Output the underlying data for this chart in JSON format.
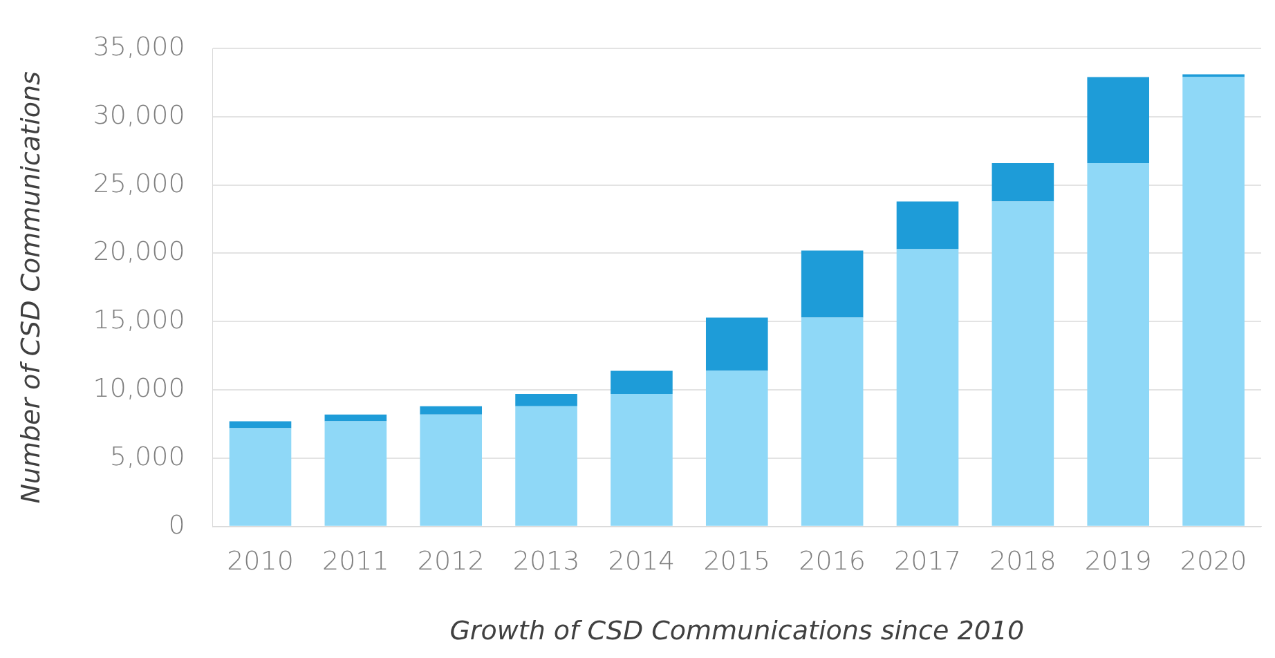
{
  "chart_data": {
    "type": "bar",
    "xlabel": "Growth of CSD Communications since 2010",
    "ylabel": "Number of CSD Communications",
    "categories": [
      "2010",
      "2011",
      "2012",
      "2013",
      "2014",
      "2015",
      "2016",
      "2017",
      "2018",
      "2019",
      "2020"
    ],
    "stacked": true,
    "series": [
      {
        "color": "#8fd8f7",
        "values": [
          7200,
          7700,
          8200,
          8800,
          9700,
          11400,
          15300,
          20300,
          23800,
          26600,
          32900
        ]
      },
      {
        "color": "#1e9cd8",
        "values": [
          500,
          500,
          600,
          900,
          1700,
          3900,
          4900,
          3500,
          2800,
          6300,
          200
        ]
      }
    ],
    "ylim": [
      0,
      35000
    ],
    "yticks": [
      0,
      {
        "value": 5000,
        "label": "5,000"
      },
      {
        "value": 10000,
        "label": "10,000"
      },
      {
        "value": 15000,
        "label": "15,000"
      },
      {
        "value": 20000,
        "label": "20,000"
      },
      {
        "value": 25000,
        "label": "25,000"
      },
      {
        "value": 30000,
        "label": "30,000"
      },
      {
        "value": 35000,
        "label": "35,000"
      }
    ],
    "grid": "y",
    "legend": false
  }
}
